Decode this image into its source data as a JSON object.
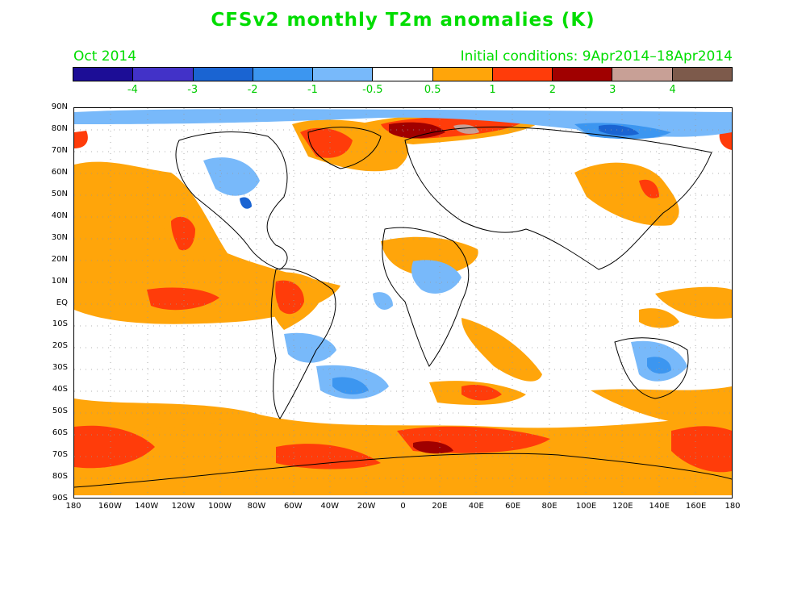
{
  "title": "CFSv2 monthly T2m anomalies (K)",
  "month_label": "Oct 2014",
  "initial_conditions": "Initial conditions: 9Apr2014–18Apr2014",
  "colorbar": {
    "colors": [
      "#1c0d96",
      "#4232c8",
      "#1a64d2",
      "#3c96f0",
      "#78b9fa",
      "#ffffff",
      "#ffa50a",
      "#ff3c0a",
      "#a00000",
      "#c8a096",
      "#7d5a4b"
    ],
    "labels": [
      "-4",
      "-3",
      "-2",
      "-1",
      "-0.5",
      "0.5",
      "1",
      "2",
      "3",
      "4"
    ]
  },
  "axes": {
    "lat_labels": [
      "90N",
      "80N",
      "70N",
      "60N",
      "50N",
      "40N",
      "30N",
      "20N",
      "10N",
      "EQ",
      "10S",
      "20S",
      "30S",
      "40S",
      "50S",
      "60S",
      "70S",
      "80S",
      "90S"
    ],
    "lon_labels": [
      "180",
      "160W",
      "140W",
      "120W",
      "100W",
      "80W",
      "60W",
      "40W",
      "20W",
      "0",
      "20E",
      "40E",
      "60E",
      "80E",
      "100E",
      "120E",
      "140E",
      "160E",
      "180"
    ]
  },
  "map": {
    "type": "global lat-lon anomaly contour map",
    "warm_regions": [
      "Greenland",
      "Arctic north of Europe",
      "Eastern Siberia",
      "Northeast Pacific / Baja California",
      "Central equatorial Pacific",
      "Northern South America",
      "Southern Ocean ring",
      "Antarctic coast"
    ],
    "cool_regions": [
      "Northern Canada",
      "Central Siberian Arctic",
      "Eastern Africa",
      "Southern Atlantic",
      "Australia"
    ]
  }
}
